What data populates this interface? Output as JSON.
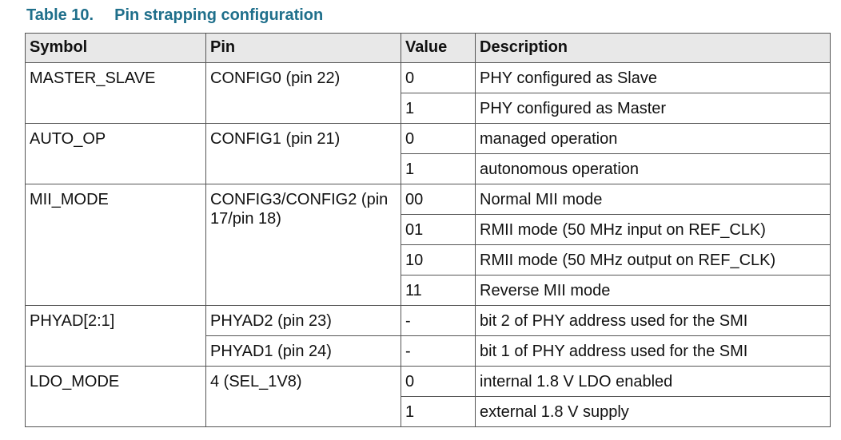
{
  "caption": {
    "number": "Table 10.",
    "title": "Pin strapping configuration"
  },
  "table": {
    "headers": [
      "Symbol",
      "Pin",
      "Value",
      "Description"
    ],
    "groups": [
      {
        "symbol": "MASTER_SLAVE",
        "pin": "CONFIG0 (pin 22)",
        "rows": [
          {
            "value": "0",
            "description": "PHY configured as Slave"
          },
          {
            "value": "1",
            "description": "PHY configured as Master"
          }
        ]
      },
      {
        "symbol": "AUTO_OP",
        "pin": "CONFIG1 (pin 21)",
        "rows": [
          {
            "value": "0",
            "description": "managed operation"
          },
          {
            "value": "1",
            "description": "autonomous operation"
          }
        ]
      },
      {
        "symbol": "MII_MODE",
        "pin": "CONFIG3/CONFIG2 (pin 17/pin 18)",
        "rows": [
          {
            "value": "00",
            "description": "Normal MII mode"
          },
          {
            "value": "01",
            "description": "RMII mode (50 MHz input on REF_CLK)"
          },
          {
            "value": "10",
            "description": "RMII mode (50 MHz output on REF_CLK)"
          },
          {
            "value": "11",
            "description": "Reverse MII mode"
          }
        ]
      },
      {
        "symbol": "PHYAD[2:1]",
        "rows": [
          {
            "pin": "PHYAD2 (pin 23)",
            "value": "-",
            "description": "bit 2 of PHY address used for the SMI"
          },
          {
            "pin": "PHYAD1 (pin 24)",
            "value": "-",
            "description": "bit 1 of PHY address used for the SMI"
          }
        ]
      },
      {
        "symbol": "LDO_MODE",
        "pin": "4 (SEL_1V8)",
        "rows": [
          {
            "value": "0",
            "description": "internal 1.8 V LDO enabled"
          },
          {
            "value": "1",
            "description": "external 1.8 V supply"
          }
        ]
      }
    ]
  }
}
